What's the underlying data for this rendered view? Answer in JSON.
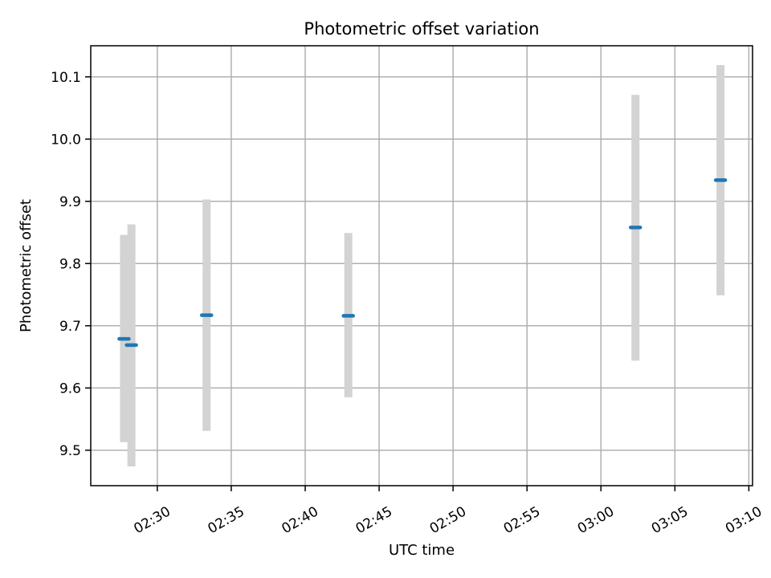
{
  "chart_data": {
    "type": "scatter",
    "title": "Photometric offset variation",
    "xlabel": "UTC time",
    "ylabel": "Photometric offset",
    "x_ticks": [
      "02:30",
      "02:35",
      "02:40",
      "02:45",
      "02:50",
      "02:55",
      "03:00",
      "03:05",
      "03:10"
    ],
    "y_ticks": [
      "9.5",
      "9.6",
      "9.7",
      "9.8",
      "9.9",
      "10.0",
      "10.1"
    ],
    "xlim": [
      "02:25:30",
      "03:10:15"
    ],
    "ylim": [
      9.443,
      10.15
    ],
    "grid": true,
    "series": [
      {
        "points": [
          {
            "time": "02:27:45",
            "value": 9.679,
            "err_low": 9.513,
            "err_high": 9.846
          },
          {
            "time": "02:28:15",
            "value": 9.669,
            "err_low": 9.474,
            "err_high": 9.863
          },
          {
            "time": "02:33:20",
            "value": 9.717,
            "err_low": 9.531,
            "err_high": 9.903
          },
          {
            "time": "02:42:55",
            "value": 9.716,
            "err_low": 9.585,
            "err_high": 9.849
          },
          {
            "time": "03:02:20",
            "value": 9.858,
            "err_low": 9.644,
            "err_high": 10.071
          },
          {
            "time": "03:08:05",
            "value": 9.934,
            "err_low": 9.749,
            "err_high": 10.119
          }
        ]
      }
    ],
    "colors": {
      "marker": "#1f77b4",
      "errorbar": "#d3d3d3",
      "grid": "#b0b0b0",
      "axis": "#000000"
    }
  }
}
